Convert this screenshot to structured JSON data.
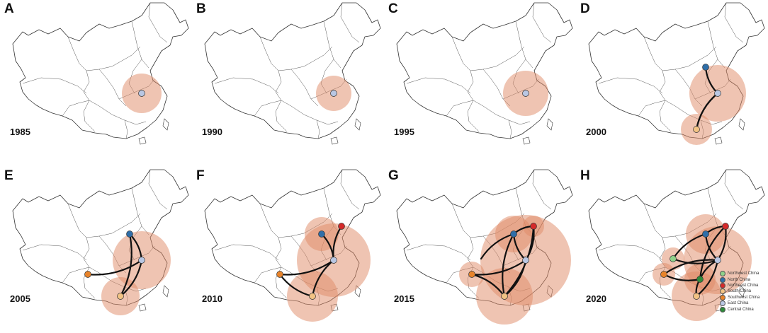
{
  "panels": [
    {
      "letter": "A",
      "year": "1985"
    },
    {
      "letter": "B",
      "year": "1990"
    },
    {
      "letter": "C",
      "year": "1995"
    },
    {
      "letter": "D",
      "year": "2000"
    },
    {
      "letter": "E",
      "year": "2005"
    },
    {
      "letter": "F",
      "year": "2010"
    },
    {
      "letter": "G",
      "year": "2015"
    },
    {
      "letter": "H",
      "year": "2020"
    }
  ],
  "legend": {
    "items": [
      {
        "label": "Northwest China",
        "color": "#8fd18a"
      },
      {
        "label": "North China",
        "color": "#2f6ea8"
      },
      {
        "label": "Northeast China",
        "color": "#d42a2a"
      },
      {
        "label": "South China",
        "color": "#f2c384"
      },
      {
        "label": "Southwest China",
        "color": "#e8842b"
      },
      {
        "label": "East China",
        "color": "#b9c7e3"
      },
      {
        "label": "Central China",
        "color": "#2e8b3a"
      }
    ]
  }
}
